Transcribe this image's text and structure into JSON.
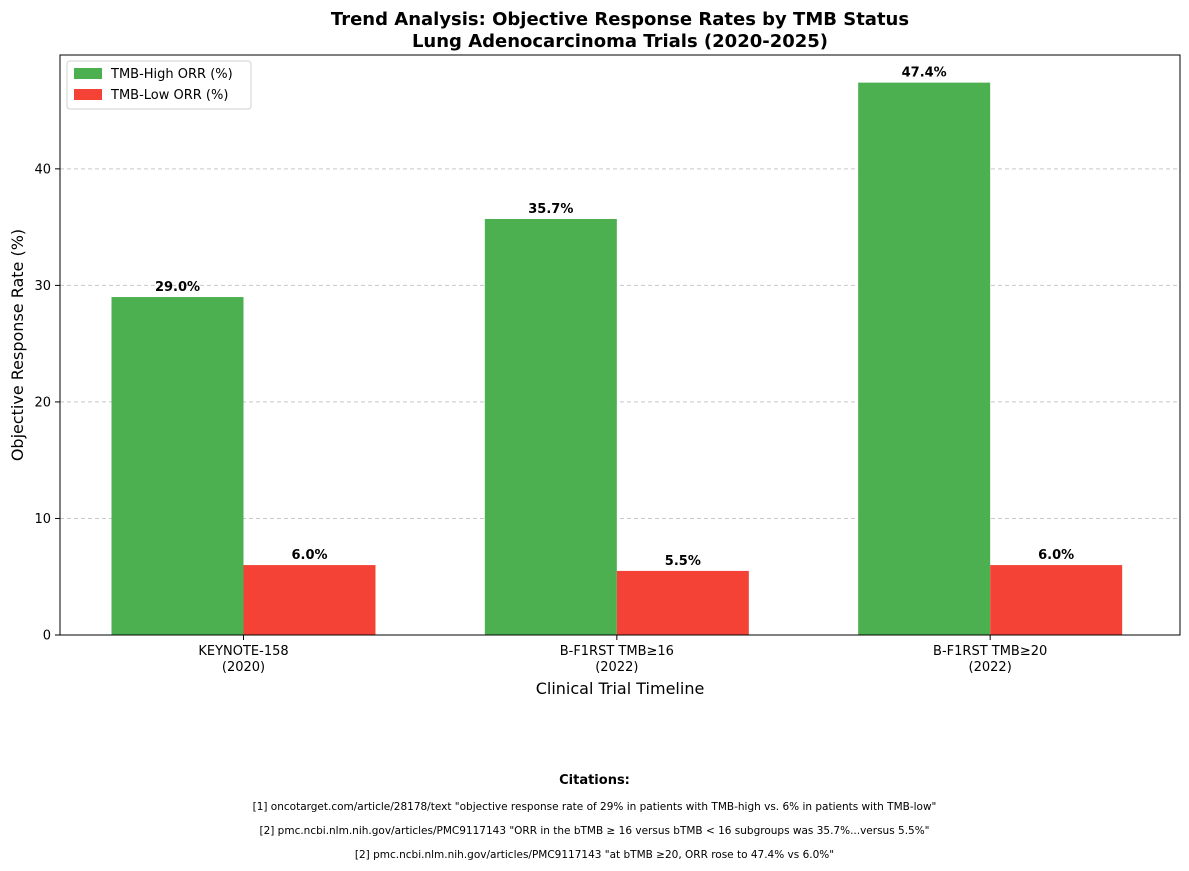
{
  "chart_data": {
    "type": "bar",
    "title": "Trend Analysis: Objective Response Rates by TMB Status",
    "subtitle": "Lung Adenocarcinoma Trials (2020-2025)",
    "xlabel": "Clinical Trial Timeline",
    "ylabel": "Objective Response Rate (%)",
    "ylim": [
      0,
      49.77
    ],
    "yticks": [
      0,
      10,
      20,
      30,
      40
    ],
    "grid": "y dashed",
    "legend_position": "top-left",
    "categories": [
      [
        "KEYNOTE-158",
        "(2020)"
      ],
      [
        "B-F1RST TMB≥16",
        "(2022)"
      ],
      [
        "B-F1RST TMB≥20",
        "(2022)"
      ]
    ],
    "series": [
      {
        "name": "TMB-High ORR (%)",
        "color": "#4caf50",
        "values": [
          29.0,
          35.7,
          47.4
        ],
        "labels": [
          "29.0%",
          "35.7%",
          "47.4%"
        ]
      },
      {
        "name": "TMB-Low ORR (%)",
        "color": "#f44336",
        "values": [
          6.0,
          5.5,
          6.0
        ],
        "labels": [
          "6.0%",
          "5.5%",
          "6.0%"
        ]
      }
    ]
  },
  "citations": {
    "title": "Citations:",
    "lines": [
      "[1] oncotarget.com/article/28178/text \"objective response rate of 29% in patients with TMB-high vs. 6% in patients with TMB-low\"",
      "[2] pmc.ncbi.nlm.nih.gov/articles/PMC9117143 \"ORR in the bTMB ≥ 16 versus bTMB < 16 subgroups was 35.7%...versus 5.5%\"",
      "[2] pmc.ncbi.nlm.nih.gov/articles/PMC9117143 \"at bTMB ≥20, ORR rose to 47.4% vs 6.0%\""
    ]
  }
}
